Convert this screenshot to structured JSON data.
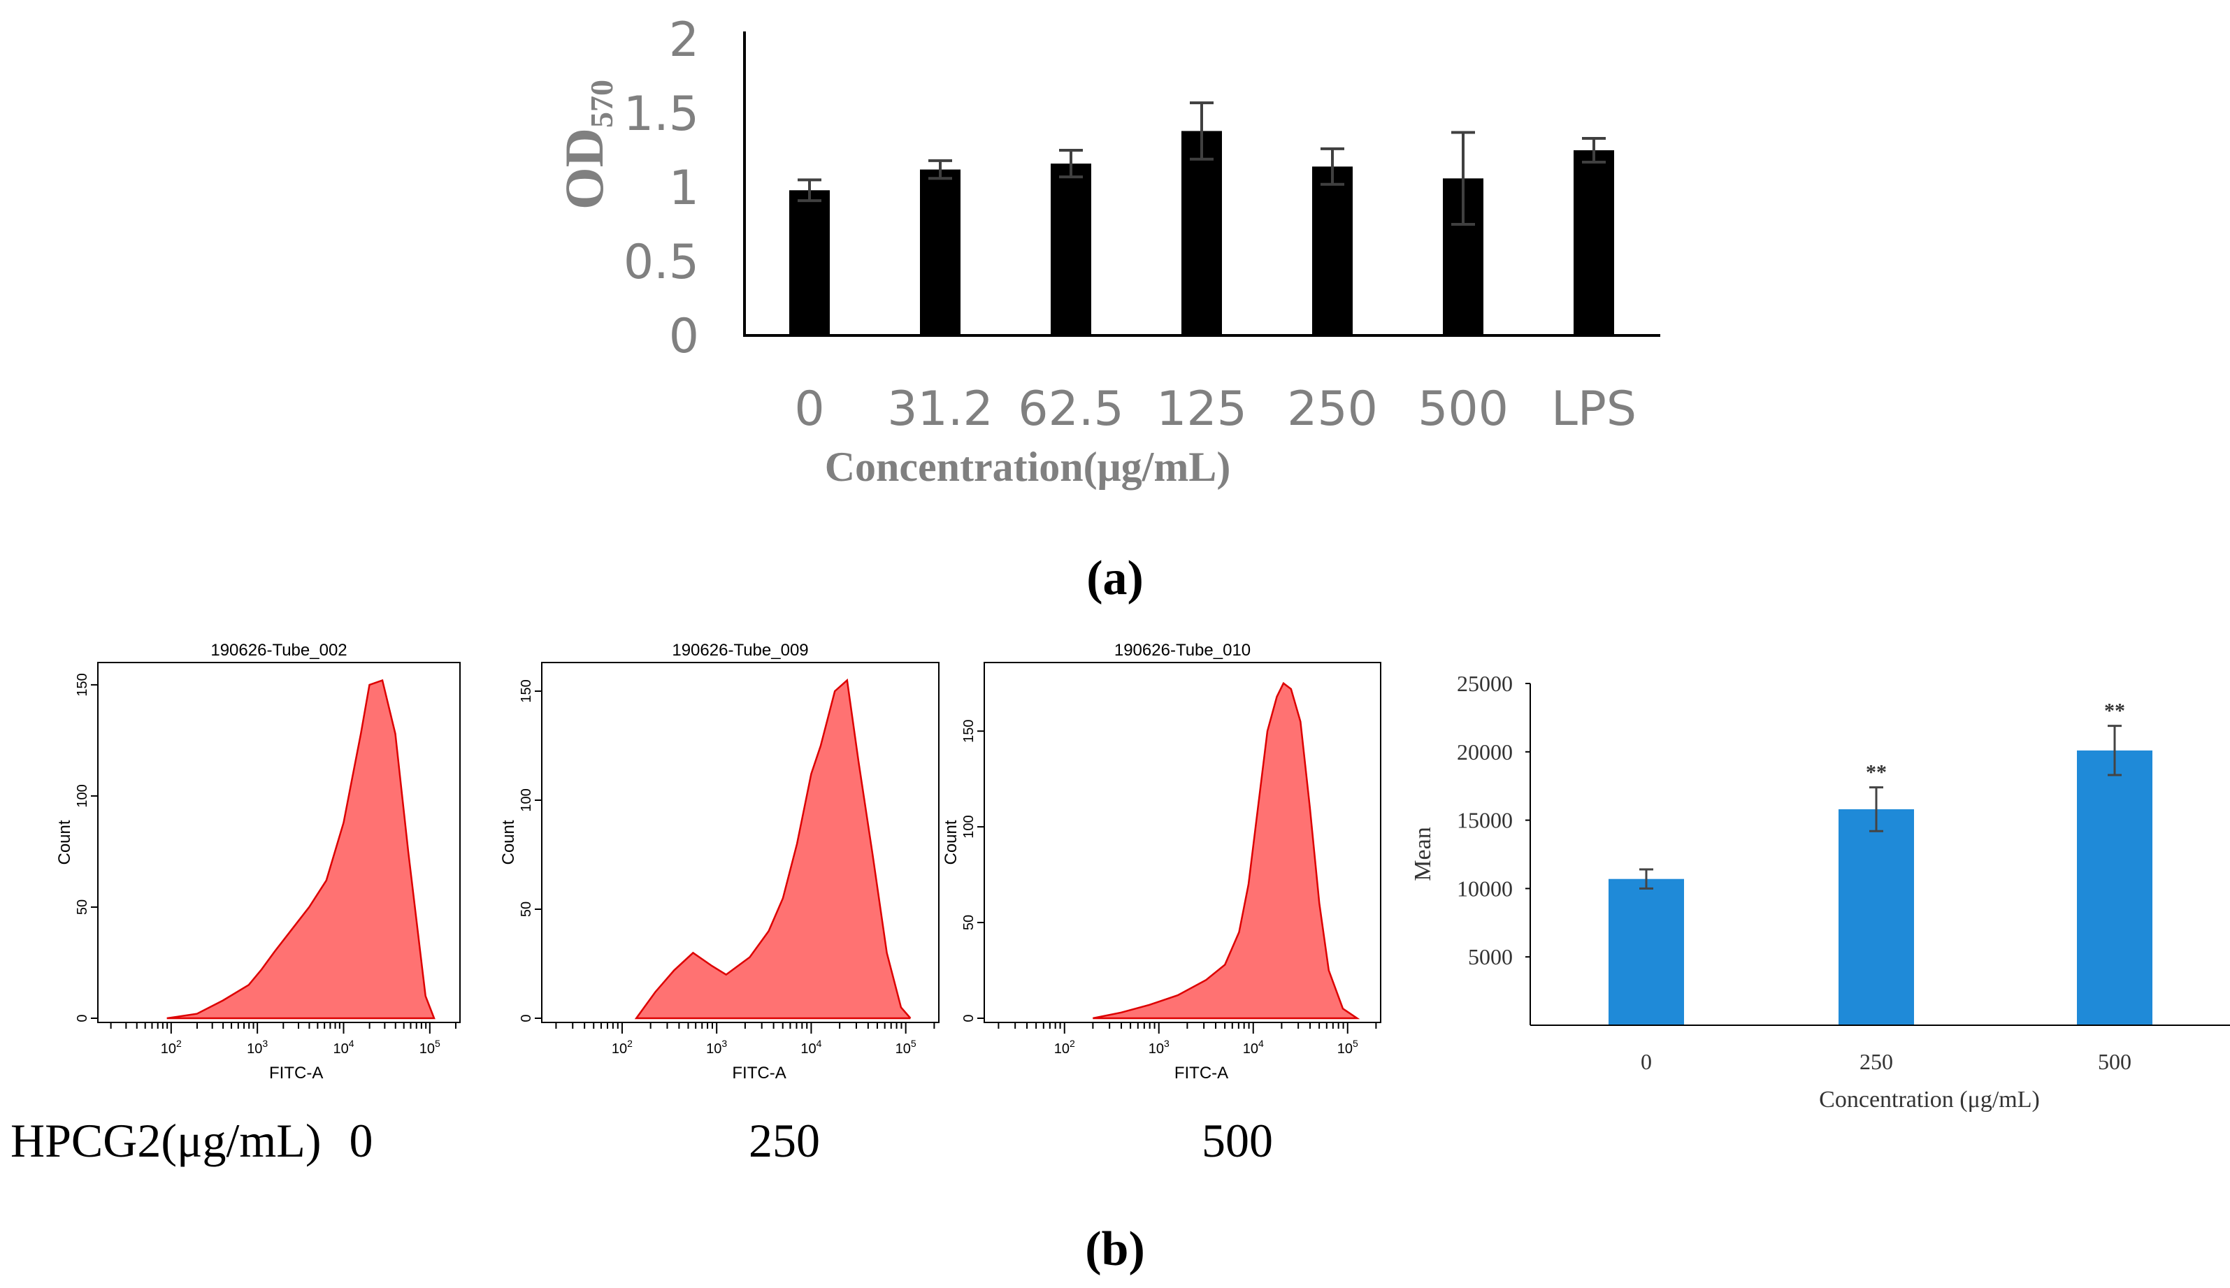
{
  "colors": {
    "bar_a": "#000000",
    "axis_text_a": "#808080",
    "bar_b": "#1f8ad8",
    "hist_fill": "#ff7272",
    "hist_edge": "#dd0000"
  },
  "panel_a": {
    "label": "(a)",
    "chart_data": {
      "type": "bar",
      "categories": [
        "0",
        "31.2",
        "62.5",
        "125",
        "250",
        "500",
        "LPS"
      ],
      "values": [
        0.98,
        1.12,
        1.16,
        1.38,
        1.14,
        1.06,
        1.25
      ],
      "errors": [
        0.07,
        0.06,
        0.09,
        0.19,
        0.12,
        0.31,
        0.08
      ],
      "ylabel_main": "OD",
      "ylabel_sub": "570",
      "xlabel": "Concentration(μg/mL)",
      "ylim": [
        0,
        2
      ],
      "yticks": [
        "0",
        "0.5",
        "1",
        "1.5",
        "2"
      ]
    }
  },
  "panel_b": {
    "label": "(b)",
    "sample_prefix": "HPCG2(μg/mL)",
    "histograms": [
      {
        "title": "190626-Tube_002",
        "dose": "0",
        "xlabel": "FITC-A",
        "ylabel": "Count",
        "yticks": [
          "0",
          "50",
          "100",
          "150"
        ],
        "ymax": 155,
        "xticks": [
          "10^2",
          "10^3",
          "10^4",
          "10^5"
        ],
        "x_log": [
          1.95,
          2.3,
          2.6,
          2.9,
          3.05,
          3.2,
          3.4,
          3.6,
          3.8,
          4.0,
          4.1,
          4.2,
          4.3,
          4.45,
          4.6,
          4.75,
          4.95,
          5.05
        ],
        "counts": [
          0,
          2,
          8,
          15,
          22,
          30,
          40,
          50,
          62,
          88,
          108,
          128,
          150,
          152,
          128,
          75,
          10,
          0
        ]
      },
      {
        "title": "190626-Tube_009",
        "dose": "250",
        "xlabel": "FITC-A",
        "ylabel": "Count",
        "yticks": [
          "0",
          "50",
          "100",
          "150"
        ],
        "ymax": 158,
        "xticks": [
          "10^2",
          "10^3",
          "10^4",
          "10^5"
        ],
        "x_log": [
          2.15,
          2.35,
          2.55,
          2.75,
          2.95,
          3.1,
          3.35,
          3.55,
          3.7,
          3.85,
          4.0,
          4.1,
          4.25,
          4.38,
          4.5,
          4.65,
          4.8,
          4.95,
          5.05
        ],
        "counts": [
          0,
          12,
          22,
          30,
          24,
          20,
          28,
          40,
          55,
          80,
          112,
          125,
          150,
          155,
          118,
          75,
          30,
          5,
          0
        ]
      },
      {
        "title": "190626-Tube_010",
        "dose": "500",
        "xlabel": "FITC-A",
        "ylabel": "Count",
        "yticks": [
          "0",
          "50",
          "100",
          "150"
        ],
        "ymax": 180,
        "xticks": [
          "10^2",
          "10^3",
          "10^4",
          "10^5"
        ],
        "x_log": [
          2.3,
          2.6,
          2.9,
          3.2,
          3.5,
          3.7,
          3.85,
          3.95,
          4.05,
          4.15,
          4.25,
          4.32,
          4.4,
          4.5,
          4.6,
          4.7,
          4.8,
          4.95,
          5.1
        ],
        "counts": [
          0,
          3,
          7,
          12,
          20,
          28,
          45,
          70,
          110,
          150,
          168,
          175,
          172,
          155,
          110,
          60,
          25,
          5,
          0
        ]
      }
    ],
    "mean_chart": {
      "chart_data": {
        "type": "bar",
        "categories": [
          "0",
          "250",
          "500"
        ],
        "values": [
          10700,
          15800,
          20100
        ],
        "errors": [
          700,
          1600,
          1800
        ],
        "annotations": [
          "",
          "**",
          "**"
        ],
        "ylabel": "Mean",
        "xlabel": "Concentration (μg/mL)",
        "ylim": [
          0,
          25000
        ],
        "yticks": [
          "5000",
          "10000",
          "15000",
          "20000",
          "25000"
        ]
      }
    }
  }
}
